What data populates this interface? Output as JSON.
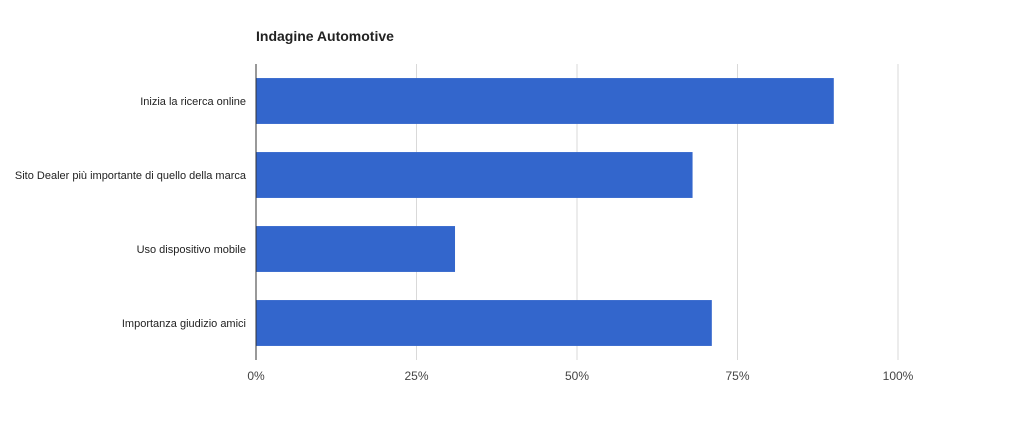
{
  "chart_data": {
    "type": "bar",
    "orientation": "horizontal",
    "title": "Indagine Automotive",
    "categories": [
      "Inizia la ricerca online",
      "Sito Dealer più importante di quello della marca",
      "Uso dispositivo mobile",
      "Importanza giudizio amici"
    ],
    "values": [
      90,
      68,
      31,
      71
    ],
    "xlim": [
      0,
      100
    ],
    "ticks": [
      0,
      25,
      50,
      75,
      100
    ],
    "tick_labels": [
      "0%",
      "25%",
      "50%",
      "75%",
      "100%"
    ],
    "grid": true,
    "legend": "none",
    "bar_color": "#3366cc"
  }
}
